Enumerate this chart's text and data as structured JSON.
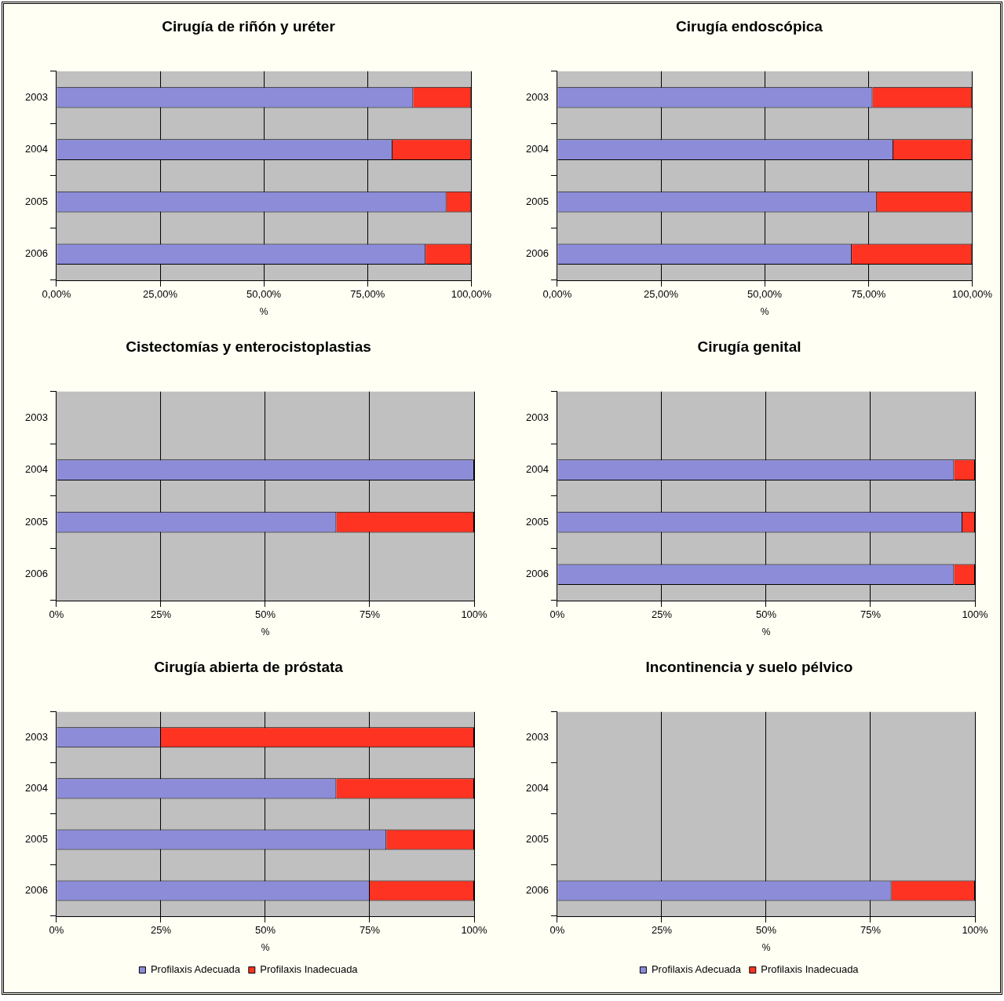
{
  "chart_data": [
    {
      "type": "bar",
      "orientation": "horizontal",
      "stacked": true,
      "title": "Cirugía de riñón y uréter",
      "xlabel": "%",
      "categories": [
        "2003",
        "2004",
        "2005",
        "2006"
      ],
      "series": [
        {
          "color": "#8c8cd8",
          "values": [
            86,
            81,
            94,
            89
          ]
        },
        {
          "color": "#ff3322",
          "values": [
            14,
            19,
            6,
            11
          ]
        }
      ],
      "xlim": [
        0,
        100
      ],
      "xticks": [
        {
          "value": 0,
          "label": "0,00%"
        },
        {
          "value": 25,
          "label": "25,00%"
        },
        {
          "value": 50,
          "label": "50,00%"
        },
        {
          "value": 75,
          "label": "75,00%"
        },
        {
          "value": 100,
          "label": "100,00%"
        }
      ],
      "grid": "x"
    },
    {
      "type": "bar",
      "orientation": "horizontal",
      "stacked": true,
      "title": "Cirugía endoscópica",
      "xlabel": "%",
      "categories": [
        "2003",
        "2004",
        "2005",
        "2006"
      ],
      "series": [
        {
          "color": "#8c8cd8",
          "values": [
            76,
            81,
            77,
            71
          ]
        },
        {
          "color": "#ff3322",
          "values": [
            24,
            19,
            23,
            29
          ]
        }
      ],
      "xlim": [
        0,
        100
      ],
      "xticks": [
        {
          "value": 0,
          "label": "0,00%"
        },
        {
          "value": 25,
          "label": "25,00%"
        },
        {
          "value": 50,
          "label": "50,00%"
        },
        {
          "value": 75,
          "label": "75,00%"
        },
        {
          "value": 100,
          "label": "100,00%"
        }
      ],
      "grid": "x"
    },
    {
      "type": "bar",
      "orientation": "horizontal",
      "stacked": true,
      "title": "Cistectomías y enterocistoplastias",
      "xlabel": "%",
      "categories": [
        "2003",
        "2004",
        "2005",
        "2006"
      ],
      "series": [
        {
          "color": "#8c8cd8",
          "values": [
            null,
            100,
            67,
            null
          ]
        },
        {
          "color": "#ff3322",
          "values": [
            null,
            0,
            33,
            null
          ]
        }
      ],
      "xlim": [
        0,
        100
      ],
      "xticks": [
        {
          "value": 0,
          "label": "0%"
        },
        {
          "value": 25,
          "label": "25%"
        },
        {
          "value": 50,
          "label": "50%"
        },
        {
          "value": 75,
          "label": "75%"
        },
        {
          "value": 100,
          "label": "100%"
        }
      ],
      "grid": "x"
    },
    {
      "type": "bar",
      "orientation": "horizontal",
      "stacked": true,
      "title": "Cirugía genital",
      "xlabel": "%",
      "categories": [
        "2003",
        "2004",
        "2005",
        "2006"
      ],
      "series": [
        {
          "color": "#8c8cd8",
          "values": [
            null,
            95,
            97,
            95
          ]
        },
        {
          "color": "#ff3322",
          "values": [
            null,
            5,
            3,
            5
          ]
        }
      ],
      "xlim": [
        0,
        100
      ],
      "xticks": [
        {
          "value": 0,
          "label": "0%"
        },
        {
          "value": 25,
          "label": "25%"
        },
        {
          "value": 50,
          "label": "50%"
        },
        {
          "value": 75,
          "label": "75%"
        },
        {
          "value": 100,
          "label": "100%"
        }
      ],
      "grid": "x"
    },
    {
      "type": "bar",
      "orientation": "horizontal",
      "stacked": true,
      "title": "Cirugía abierta de próstata",
      "xlabel": "%",
      "categories": [
        "2003",
        "2004",
        "2005",
        "2006"
      ],
      "series": [
        {
          "name": "Profilaxis Adecuada",
          "color": "#8c8cd8",
          "values": [
            25,
            67,
            79,
            75
          ]
        },
        {
          "name": "Profilaxis Inadecuada",
          "color": "#ff3322",
          "values": [
            75,
            33,
            21,
            25
          ]
        }
      ],
      "xlim": [
        0,
        100
      ],
      "xticks": [
        {
          "value": 0,
          "label": "0%"
        },
        {
          "value": 25,
          "label": "25%"
        },
        {
          "value": 50,
          "label": "50%"
        },
        {
          "value": 75,
          "label": "75%"
        },
        {
          "value": 100,
          "label": "100%"
        }
      ],
      "grid": "x",
      "legend": "bottom"
    },
    {
      "type": "bar",
      "orientation": "horizontal",
      "stacked": true,
      "title": "Incontinencia y suelo pélvico",
      "xlabel": "%",
      "categories": [
        "2003",
        "2004",
        "2005",
        "2006"
      ],
      "series": [
        {
          "name": "Profilaxis Adecuada",
          "color": "#8c8cd8",
          "values": [
            null,
            null,
            null,
            80
          ]
        },
        {
          "name": "Profilaxis Inadecuada",
          "color": "#ff3322",
          "values": [
            null,
            null,
            null,
            20
          ]
        }
      ],
      "xlim": [
        0,
        100
      ],
      "xticks": [
        {
          "value": 0,
          "label": "0%"
        },
        {
          "value": 25,
          "label": "25%"
        },
        {
          "value": 50,
          "label": "50%"
        },
        {
          "value": 75,
          "label": "75%"
        },
        {
          "value": 100,
          "label": "100%"
        }
      ],
      "grid": "x",
      "legend": "bottom"
    }
  ]
}
